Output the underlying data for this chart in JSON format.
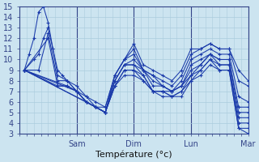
{
  "xlabel": "Température (°c)",
  "xlim": [
    0,
    96
  ],
  "ylim": [
    3,
    15
  ],
  "yticks": [
    3,
    4,
    5,
    6,
    7,
    8,
    9,
    10,
    11,
    12,
    13,
    14,
    15
  ],
  "xtick_positions": [
    24,
    48,
    72,
    96
  ],
  "xtick_labels": [
    "Sam",
    "Dim",
    "Lun",
    "Mar"
  ],
  "bg_color": "#cce4f0",
  "grid_color": "#aaccdd",
  "line_color": "#1a3aaa",
  "series": [
    [
      [
        2,
        9.0
      ],
      [
        4,
        10.5
      ],
      [
        6,
        12.0
      ],
      [
        8,
        14.5
      ],
      [
        10,
        15.0
      ],
      [
        12,
        13.5
      ],
      [
        14,
        11.0
      ],
      [
        16,
        9.0
      ],
      [
        18,
        8.5
      ],
      [
        20,
        8.0
      ],
      [
        24,
        7.5
      ],
      [
        28,
        6.5
      ],
      [
        32,
        6.0
      ],
      [
        36,
        5.5
      ],
      [
        40,
        8.5
      ],
      [
        44,
        10.0
      ],
      [
        48,
        11.5
      ],
      [
        52,
        9.5
      ],
      [
        56,
        9.0
      ],
      [
        60,
        8.5
      ],
      [
        64,
        8.0
      ],
      [
        68,
        9.0
      ],
      [
        72,
        11.0
      ],
      [
        76,
        11.0
      ],
      [
        80,
        11.5
      ],
      [
        84,
        11.0
      ],
      [
        88,
        11.0
      ],
      [
        92,
        9.0
      ],
      [
        96,
        8.0
      ]
    ],
    [
      [
        2,
        9.0
      ],
      [
        6,
        10.0
      ],
      [
        8,
        10.5
      ],
      [
        10,
        12.0
      ],
      [
        12,
        13.0
      ],
      [
        14,
        11.0
      ],
      [
        16,
        8.5
      ],
      [
        20,
        8.0
      ],
      [
        24,
        7.0
      ],
      [
        28,
        6.5
      ],
      [
        32,
        5.5
      ],
      [
        36,
        5.5
      ],
      [
        40,
        8.5
      ],
      [
        44,
        10.0
      ],
      [
        48,
        11.0
      ],
      [
        52,
        9.0
      ],
      [
        56,
        8.5
      ],
      [
        60,
        8.0
      ],
      [
        64,
        7.5
      ],
      [
        68,
        8.5
      ],
      [
        72,
        10.5
      ],
      [
        76,
        11.0
      ],
      [
        80,
        11.5
      ],
      [
        84,
        11.0
      ],
      [
        88,
        11.0
      ],
      [
        92,
        8.0
      ],
      [
        96,
        7.5
      ]
    ],
    [
      [
        2,
        9.0
      ],
      [
        8,
        9.0
      ],
      [
        12,
        12.5
      ],
      [
        16,
        8.0
      ],
      [
        20,
        8.0
      ],
      [
        24,
        7.0
      ],
      [
        28,
        6.0
      ],
      [
        32,
        5.5
      ],
      [
        36,
        5.0
      ],
      [
        40,
        8.5
      ],
      [
        44,
        10.0
      ],
      [
        48,
        10.5
      ],
      [
        52,
        9.0
      ],
      [
        56,
        8.5
      ],
      [
        60,
        7.5
      ],
      [
        64,
        7.0
      ],
      [
        68,
        8.0
      ],
      [
        72,
        10.0
      ],
      [
        76,
        10.5
      ],
      [
        80,
        11.0
      ],
      [
        84,
        10.5
      ],
      [
        88,
        10.5
      ],
      [
        92,
        6.5
      ],
      [
        96,
        6.0
      ]
    ],
    [
      [
        2,
        9.0
      ],
      [
        12,
        12.0
      ],
      [
        16,
        7.5
      ],
      [
        20,
        7.5
      ],
      [
        24,
        7.0
      ],
      [
        28,
        6.0
      ],
      [
        32,
        5.5
      ],
      [
        36,
        5.0
      ],
      [
        40,
        8.0
      ],
      [
        44,
        9.5
      ],
      [
        48,
        10.0
      ],
      [
        52,
        9.0
      ],
      [
        56,
        8.0
      ],
      [
        60,
        7.5
      ],
      [
        64,
        7.0
      ],
      [
        68,
        7.5
      ],
      [
        72,
        9.5
      ],
      [
        76,
        10.0
      ],
      [
        80,
        10.5
      ],
      [
        84,
        10.0
      ],
      [
        88,
        10.0
      ],
      [
        92,
        5.5
      ],
      [
        96,
        5.5
      ]
    ],
    [
      [
        2,
        9.0
      ],
      [
        16,
        7.5
      ],
      [
        20,
        7.5
      ],
      [
        24,
        7.0
      ],
      [
        28,
        6.0
      ],
      [
        32,
        5.5
      ],
      [
        36,
        5.0
      ],
      [
        40,
        8.0
      ],
      [
        44,
        9.5
      ],
      [
        48,
        9.5
      ],
      [
        52,
        9.0
      ],
      [
        56,
        7.5
      ],
      [
        60,
        7.5
      ],
      [
        64,
        7.0
      ],
      [
        68,
        7.5
      ],
      [
        72,
        9.0
      ],
      [
        76,
        9.5
      ],
      [
        80,
        10.5
      ],
      [
        84,
        10.0
      ],
      [
        88,
        10.0
      ],
      [
        92,
        5.0
      ],
      [
        96,
        5.0
      ]
    ],
    [
      [
        2,
        9.0
      ],
      [
        20,
        7.5
      ],
      [
        24,
        7.0
      ],
      [
        28,
        6.0
      ],
      [
        32,
        5.5
      ],
      [
        36,
        5.0
      ],
      [
        40,
        8.0
      ],
      [
        44,
        9.5
      ],
      [
        48,
        9.5
      ],
      [
        52,
        8.5
      ],
      [
        56,
        7.0
      ],
      [
        60,
        7.0
      ],
      [
        64,
        7.0
      ],
      [
        68,
        7.5
      ],
      [
        72,
        8.5
      ],
      [
        76,
        9.5
      ],
      [
        80,
        10.5
      ],
      [
        84,
        9.5
      ],
      [
        88,
        9.5
      ],
      [
        92,
        4.5
      ],
      [
        96,
        4.5
      ]
    ],
    [
      [
        2,
        9.0
      ],
      [
        24,
        7.0
      ],
      [
        28,
        6.0
      ],
      [
        32,
        5.5
      ],
      [
        36,
        5.0
      ],
      [
        40,
        7.5
      ],
      [
        44,
        9.0
      ],
      [
        48,
        9.0
      ],
      [
        52,
        8.5
      ],
      [
        56,
        7.0
      ],
      [
        60,
        7.0
      ],
      [
        64,
        6.5
      ],
      [
        68,
        7.0
      ],
      [
        72,
        8.5
      ],
      [
        76,
        9.0
      ],
      [
        80,
        10.0
      ],
      [
        84,
        9.5
      ],
      [
        88,
        9.5
      ],
      [
        92,
        4.0
      ],
      [
        96,
        4.0
      ]
    ],
    [
      [
        2,
        9.0
      ],
      [
        28,
        6.0
      ],
      [
        32,
        5.5
      ],
      [
        36,
        5.0
      ],
      [
        40,
        7.5
      ],
      [
        44,
        9.0
      ],
      [
        48,
        9.0
      ],
      [
        52,
        8.0
      ],
      [
        56,
        7.0
      ],
      [
        60,
        7.0
      ],
      [
        64,
        6.5
      ],
      [
        68,
        7.0
      ],
      [
        72,
        8.0
      ],
      [
        76,
        9.0
      ],
      [
        80,
        10.0
      ],
      [
        84,
        9.0
      ],
      [
        88,
        9.0
      ],
      [
        92,
        3.5
      ],
      [
        96,
        3.5
      ]
    ],
    [
      [
        2,
        9.0
      ],
      [
        32,
        5.5
      ],
      [
        36,
        5.0
      ],
      [
        40,
        7.5
      ],
      [
        44,
        8.5
      ],
      [
        48,
        8.5
      ],
      [
        52,
        8.0
      ],
      [
        56,
        7.0
      ],
      [
        60,
        6.5
      ],
      [
        64,
        6.5
      ],
      [
        68,
        6.5
      ],
      [
        72,
        8.0
      ],
      [
        76,
        8.5
      ],
      [
        80,
        9.5
      ],
      [
        84,
        9.0
      ],
      [
        88,
        9.0
      ],
      [
        92,
        3.5
      ],
      [
        96,
        3.0
      ]
    ]
  ]
}
